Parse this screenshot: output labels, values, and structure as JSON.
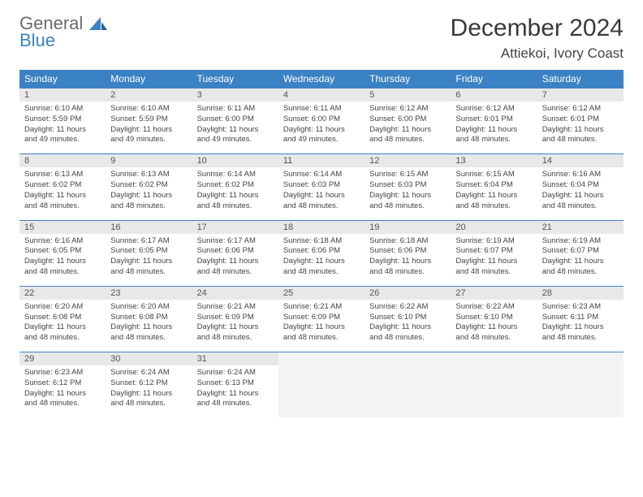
{
  "brand": {
    "line1": "General",
    "line2": "Blue"
  },
  "title": "December 2024",
  "location": "Attiekoi, Ivory Coast",
  "colors": {
    "accent": "#3b82c4",
    "header_text": "#ffffff",
    "daynum_bg": "#e8e8e8",
    "body_text": "#444444",
    "logo_gray": "#6b6b6b"
  },
  "columns": [
    "Sunday",
    "Monday",
    "Tuesday",
    "Wednesday",
    "Thursday",
    "Friday",
    "Saturday"
  ],
  "weeks": [
    [
      {
        "n": "1",
        "sr": "Sunrise: 6:10 AM",
        "ss": "Sunset: 5:59 PM",
        "dl": "Daylight: 11 hours and 49 minutes."
      },
      {
        "n": "2",
        "sr": "Sunrise: 6:10 AM",
        "ss": "Sunset: 5:59 PM",
        "dl": "Daylight: 11 hours and 49 minutes."
      },
      {
        "n": "3",
        "sr": "Sunrise: 6:11 AM",
        "ss": "Sunset: 6:00 PM",
        "dl": "Daylight: 11 hours and 49 minutes."
      },
      {
        "n": "4",
        "sr": "Sunrise: 6:11 AM",
        "ss": "Sunset: 6:00 PM",
        "dl": "Daylight: 11 hours and 49 minutes."
      },
      {
        "n": "5",
        "sr": "Sunrise: 6:12 AM",
        "ss": "Sunset: 6:00 PM",
        "dl": "Daylight: 11 hours and 48 minutes."
      },
      {
        "n": "6",
        "sr": "Sunrise: 6:12 AM",
        "ss": "Sunset: 6:01 PM",
        "dl": "Daylight: 11 hours and 48 minutes."
      },
      {
        "n": "7",
        "sr": "Sunrise: 6:12 AM",
        "ss": "Sunset: 6:01 PM",
        "dl": "Daylight: 11 hours and 48 minutes."
      }
    ],
    [
      {
        "n": "8",
        "sr": "Sunrise: 6:13 AM",
        "ss": "Sunset: 6:02 PM",
        "dl": "Daylight: 11 hours and 48 minutes."
      },
      {
        "n": "9",
        "sr": "Sunrise: 6:13 AM",
        "ss": "Sunset: 6:02 PM",
        "dl": "Daylight: 11 hours and 48 minutes."
      },
      {
        "n": "10",
        "sr": "Sunrise: 6:14 AM",
        "ss": "Sunset: 6:02 PM",
        "dl": "Daylight: 11 hours and 48 minutes."
      },
      {
        "n": "11",
        "sr": "Sunrise: 6:14 AM",
        "ss": "Sunset: 6:03 PM",
        "dl": "Daylight: 11 hours and 48 minutes."
      },
      {
        "n": "12",
        "sr": "Sunrise: 6:15 AM",
        "ss": "Sunset: 6:03 PM",
        "dl": "Daylight: 11 hours and 48 minutes."
      },
      {
        "n": "13",
        "sr": "Sunrise: 6:15 AM",
        "ss": "Sunset: 6:04 PM",
        "dl": "Daylight: 11 hours and 48 minutes."
      },
      {
        "n": "14",
        "sr": "Sunrise: 6:16 AM",
        "ss": "Sunset: 6:04 PM",
        "dl": "Daylight: 11 hours and 48 minutes."
      }
    ],
    [
      {
        "n": "15",
        "sr": "Sunrise: 6:16 AM",
        "ss": "Sunset: 6:05 PM",
        "dl": "Daylight: 11 hours and 48 minutes."
      },
      {
        "n": "16",
        "sr": "Sunrise: 6:17 AM",
        "ss": "Sunset: 6:05 PM",
        "dl": "Daylight: 11 hours and 48 minutes."
      },
      {
        "n": "17",
        "sr": "Sunrise: 6:17 AM",
        "ss": "Sunset: 6:06 PM",
        "dl": "Daylight: 11 hours and 48 minutes."
      },
      {
        "n": "18",
        "sr": "Sunrise: 6:18 AM",
        "ss": "Sunset: 6:06 PM",
        "dl": "Daylight: 11 hours and 48 minutes."
      },
      {
        "n": "19",
        "sr": "Sunrise: 6:18 AM",
        "ss": "Sunset: 6:06 PM",
        "dl": "Daylight: 11 hours and 48 minutes."
      },
      {
        "n": "20",
        "sr": "Sunrise: 6:19 AM",
        "ss": "Sunset: 6:07 PM",
        "dl": "Daylight: 11 hours and 48 minutes."
      },
      {
        "n": "21",
        "sr": "Sunrise: 6:19 AM",
        "ss": "Sunset: 6:07 PM",
        "dl": "Daylight: 11 hours and 48 minutes."
      }
    ],
    [
      {
        "n": "22",
        "sr": "Sunrise: 6:20 AM",
        "ss": "Sunset: 6:08 PM",
        "dl": "Daylight: 11 hours and 48 minutes."
      },
      {
        "n": "23",
        "sr": "Sunrise: 6:20 AM",
        "ss": "Sunset: 6:08 PM",
        "dl": "Daylight: 11 hours and 48 minutes."
      },
      {
        "n": "24",
        "sr": "Sunrise: 6:21 AM",
        "ss": "Sunset: 6:09 PM",
        "dl": "Daylight: 11 hours and 48 minutes."
      },
      {
        "n": "25",
        "sr": "Sunrise: 6:21 AM",
        "ss": "Sunset: 6:09 PM",
        "dl": "Daylight: 11 hours and 48 minutes."
      },
      {
        "n": "26",
        "sr": "Sunrise: 6:22 AM",
        "ss": "Sunset: 6:10 PM",
        "dl": "Daylight: 11 hours and 48 minutes."
      },
      {
        "n": "27",
        "sr": "Sunrise: 6:22 AM",
        "ss": "Sunset: 6:10 PM",
        "dl": "Daylight: 11 hours and 48 minutes."
      },
      {
        "n": "28",
        "sr": "Sunrise: 6:23 AM",
        "ss": "Sunset: 6:11 PM",
        "dl": "Daylight: 11 hours and 48 minutes."
      }
    ],
    [
      {
        "n": "29",
        "sr": "Sunrise: 6:23 AM",
        "ss": "Sunset: 6:12 PM",
        "dl": "Daylight: 11 hours and 48 minutes."
      },
      {
        "n": "30",
        "sr": "Sunrise: 6:24 AM",
        "ss": "Sunset: 6:12 PM",
        "dl": "Daylight: 11 hours and 48 minutes."
      },
      {
        "n": "31",
        "sr": "Sunrise: 6:24 AM",
        "ss": "Sunset: 6:13 PM",
        "dl": "Daylight: 11 hours and 48 minutes."
      },
      null,
      null,
      null,
      null
    ]
  ]
}
